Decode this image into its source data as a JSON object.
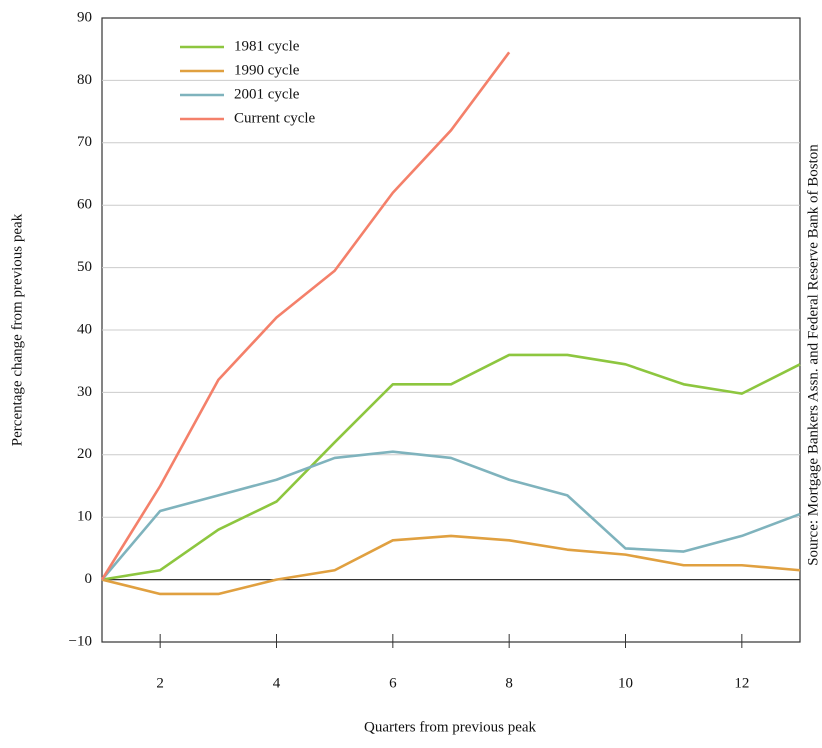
{
  "chart_data": {
    "type": "line",
    "y_label": "Percentage change from previous peak",
    "x_label": "Quarters from previous peak",
    "source": "Source: Mortgage Bankers Assn. and Federal Reserve Bank of Boston",
    "x": [
      1,
      2,
      3,
      4,
      5,
      6,
      7,
      8,
      9,
      10,
      11,
      12,
      13
    ],
    "series": [
      {
        "name": "1981 cycle",
        "color": "#8dc63f",
        "values": [
          0,
          1.5,
          8,
          12.5,
          22,
          31.3,
          31.3,
          36,
          36,
          34.5,
          31.3,
          29.8,
          34.5
        ]
      },
      {
        "name": "1990 cycle",
        "color": "#e0a040",
        "values": [
          0,
          -2.3,
          -2.3,
          0,
          1.5,
          6.3,
          7,
          6.3,
          4.8,
          4,
          2.3,
          2.3,
          1.5
        ]
      },
      {
        "name": "2001 cycle",
        "color": "#7fb3bd",
        "values": [
          0,
          11,
          13.5,
          16,
          19.5,
          20.5,
          19.5,
          16,
          13.5,
          5,
          4.5,
          7,
          10.5
        ]
      },
      {
        "name": "Current cycle",
        "color": "#f4806a",
        "values": [
          0,
          15,
          32,
          42,
          49.5,
          62,
          72,
          84.5,
          null,
          null,
          null,
          null,
          null
        ]
      }
    ],
    "xlim": [
      1,
      13
    ],
    "xticks": [
      2,
      4,
      6,
      8,
      10,
      12
    ],
    "ylim": [
      -10,
      90
    ],
    "yticks": [
      {
        "value": -10,
        "label": "−10"
      },
      0,
      10,
      20,
      30,
      40,
      50,
      60,
      70,
      80,
      90
    ],
    "grid": true,
    "legend": "upper left"
  }
}
